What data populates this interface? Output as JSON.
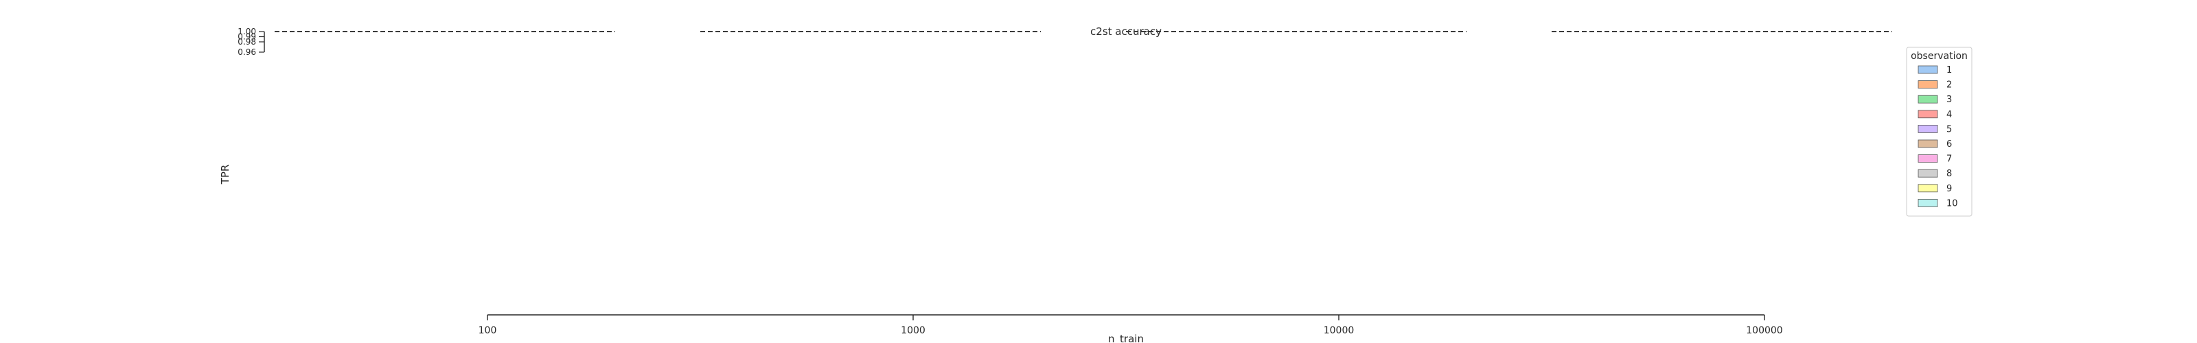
{
  "chart_data": {
    "type": "bar",
    "title": "c2st accuracy",
    "xlabel": "n_train",
    "ylabel": "TPR",
    "x_scale": "log",
    "x_ticks": [
      100,
      1000,
      10000,
      100000
    ],
    "x_tick_labels": [
      "100",
      "1000",
      "10000",
      "100000"
    ],
    "y_ticks": [
      0.96,
      0.98,
      0.99,
      1.0
    ],
    "y_tick_labels": [
      "0.96",
      "0.98",
      "0.99",
      "1.00"
    ],
    "ylim": [
      0.96,
      1.0
    ],
    "reference_line": 1.0,
    "reference_line_style": "dashed",
    "legend": {
      "title": "observation",
      "placement": "right",
      "entries": [
        "1",
        "2",
        "3",
        "4",
        "5",
        "6",
        "7",
        "8",
        "9",
        "10"
      ],
      "colors": [
        "#a1c9f4",
        "#ffb482",
        "#8de5a1",
        "#ff9f9b",
        "#d0bbff",
        "#debb9b",
        "#fab0e4",
        "#cfcfcf",
        "#fffea3",
        "#b9f2f0"
      ]
    }
  }
}
